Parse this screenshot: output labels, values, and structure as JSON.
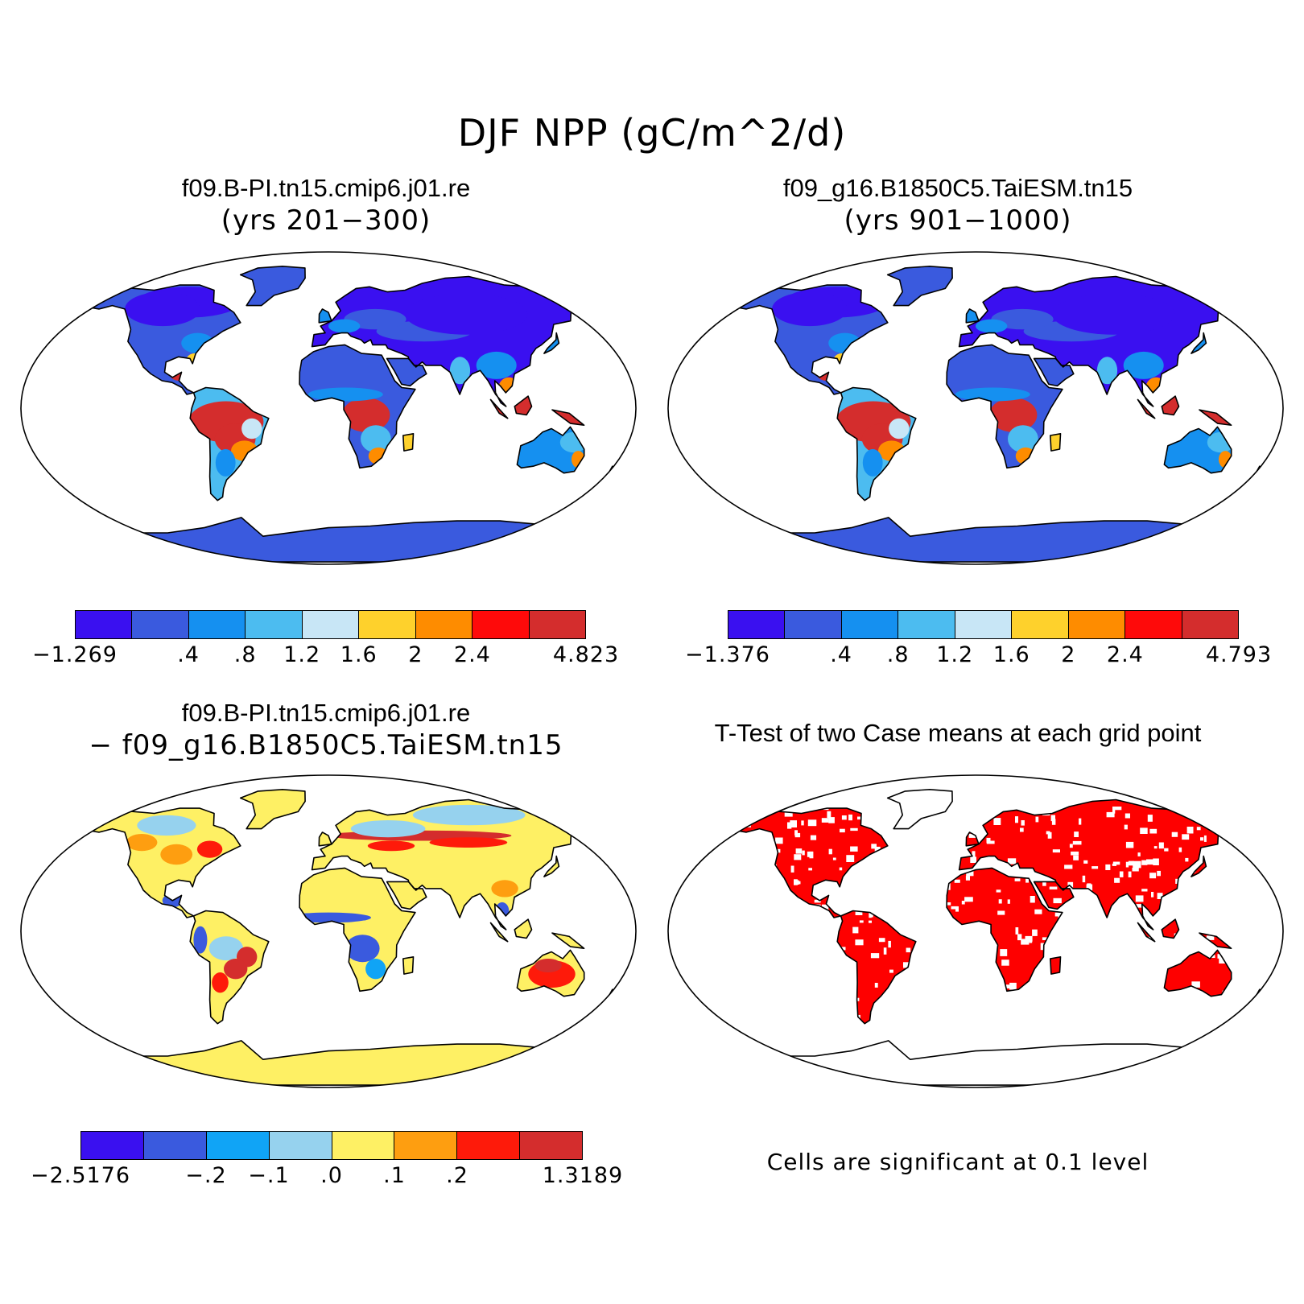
{
  "figure": {
    "title": "DJF NPP (gC/m^2/d)"
  },
  "panels": [
    {
      "id": "case1",
      "title": "f09.B-PI.tn15.cmip6.j01.re",
      "subtitle": "(yrs 201−300)",
      "colorbar": {
        "colors": [
          "#3a10f0",
          "#3a5ade",
          "#1590f0",
          "#4cbcf0",
          "#c8e6f6",
          "#fed12c",
          "#fe8c00",
          "#fe0a0a",
          "#d42d2d"
        ],
        "labels": [
          "−1.269",
          ".4",
          ".8",
          "1.2",
          "1.6",
          "2",
          "2.4",
          "4.823"
        ],
        "boundaries": [
          -1.269,
          0.4,
          0.8,
          1.2,
          1.6,
          2,
          2.4,
          4.823
        ]
      }
    },
    {
      "id": "case2",
      "title": "f09_g16.B1850C5.TaiESM.tn15",
      "subtitle": "(yrs 901−1000)",
      "colorbar": {
        "colors": [
          "#3a10f0",
          "#3a5ade",
          "#1590f0",
          "#4cbcf0",
          "#c8e6f6",
          "#fed12c",
          "#fe8c00",
          "#fe0a0a",
          "#d42d2d"
        ],
        "labels": [
          "−1.376",
          ".4",
          ".8",
          "1.2",
          "1.6",
          "2",
          "2.4",
          "4.793"
        ],
        "boundaries": [
          -1.376,
          0.4,
          0.8,
          1.2,
          1.6,
          2,
          2.4,
          4.793
        ]
      }
    },
    {
      "id": "diff",
      "title": "f09.B-PI.tn15.cmip6.j01.re",
      "subtitle": "− f09_g16.B1850C5.TaiESM.tn15",
      "colorbar": {
        "colors": [
          "#3a10f0",
          "#3a5ade",
          "#10a4f6",
          "#96d2ee",
          "#fef064",
          "#fe9e10",
          "#fe1a0a",
          "#d42d2d"
        ],
        "labels": [
          "−2.5176",
          "−.2",
          "−.1",
          ".0",
          ".1",
          ".2",
          "1.3189"
        ],
        "boundaries": [
          -2.5176,
          -0.2,
          -0.1,
          0.0,
          0.1,
          0.2,
          1.3189
        ]
      }
    },
    {
      "id": "ttest",
      "title": "T-Test of two Case means at each grid point",
      "note": "Cells are significant at 0.1 level",
      "significant_color": "#fe0000"
    }
  ]
}
